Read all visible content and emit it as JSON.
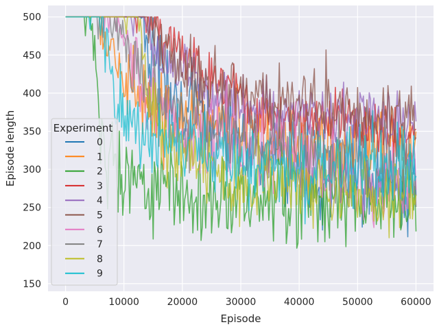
{
  "chart_data": {
    "type": "line",
    "xlabel": "Episode",
    "ylabel": "Episode length",
    "xlim": [
      -3000,
      63000
    ],
    "ylim": [
      140,
      515
    ],
    "x_ticks": [
      0,
      10000,
      20000,
      30000,
      40000,
      50000,
      60000
    ],
    "x_tick_labels": [
      "0",
      "10000",
      "20000",
      "30000",
      "40000",
      "50000",
      "60000"
    ],
    "y_ticks": [
      150,
      200,
      250,
      300,
      350,
      400,
      450,
      500
    ],
    "y_tick_labels": [
      "150",
      "200",
      "250",
      "300",
      "350",
      "400",
      "450",
      "500"
    ],
    "grid": true,
    "style": "seaborn-darkgrid",
    "legend": {
      "title": "Experiment",
      "placement": "center-left"
    },
    "background_color": "#eaeaf2",
    "x_step": 200,
    "series": [
      {
        "name": "0",
        "color": "#1f77b4",
        "plateau_until": 13000,
        "trend": [
          [
            13000,
            490
          ],
          [
            16000,
            430
          ],
          [
            20000,
            380
          ],
          [
            30000,
            340
          ],
          [
            40000,
            300
          ],
          [
            50000,
            290
          ],
          [
            60000,
            285
          ]
        ],
        "noise": 45,
        "min": 175,
        "max": 500
      },
      {
        "name": "1",
        "color": "#ff7f0e",
        "plateau_until": 6000,
        "trend": [
          [
            6000,
            495
          ],
          [
            8000,
            440
          ],
          [
            12000,
            400
          ],
          [
            20000,
            370
          ],
          [
            30000,
            340
          ],
          [
            40000,
            335
          ],
          [
            50000,
            330
          ],
          [
            60000,
            325
          ]
        ],
        "noise": 38,
        "min": 185,
        "max": 500
      },
      {
        "name": "2",
        "color": "#2ca02c",
        "plateau_until": 4500,
        "trend": [
          [
            4500,
            490
          ],
          [
            5500,
            380
          ],
          [
            7000,
            320
          ],
          [
            10000,
            290
          ],
          [
            20000,
            265
          ],
          [
            30000,
            258
          ],
          [
            40000,
            258
          ],
          [
            50000,
            258
          ],
          [
            60000,
            260
          ]
        ],
        "noise": 45,
        "min": 155,
        "max": 500
      },
      {
        "name": "3",
        "color": "#d62728",
        "plateau_until": 14000,
        "trend": [
          [
            14000,
            495
          ],
          [
            18000,
            470
          ],
          [
            25000,
            420
          ],
          [
            30000,
            390
          ],
          [
            40000,
            365
          ],
          [
            50000,
            355
          ],
          [
            60000,
            350
          ]
        ],
        "noise": 32,
        "min": 200,
        "max": 500
      },
      {
        "name": "4",
        "color": "#9467bd",
        "plateau_until": 13500,
        "trend": [
          [
            13500,
            490
          ],
          [
            18000,
            440
          ],
          [
            25000,
            400
          ],
          [
            35000,
            380
          ],
          [
            45000,
            370
          ],
          [
            60000,
            360
          ]
        ],
        "noise": 32,
        "min": 190,
        "max": 500
      },
      {
        "name": "5",
        "color": "#8c564b",
        "plateau_until": 14000,
        "trend": [
          [
            14000,
            495
          ],
          [
            18000,
            450
          ],
          [
            25000,
            410
          ],
          [
            35000,
            390
          ],
          [
            45000,
            380
          ],
          [
            60000,
            370
          ]
        ],
        "noise": 30,
        "min": 200,
        "max": 500
      },
      {
        "name": "6",
        "color": "#e377c2",
        "plateau_until": 9000,
        "trend": [
          [
            9000,
            490
          ],
          [
            12000,
            420
          ],
          [
            20000,
            360
          ],
          [
            30000,
            330
          ],
          [
            40000,
            310
          ],
          [
            50000,
            285
          ],
          [
            60000,
            280
          ]
        ],
        "noise": 42,
        "min": 158,
        "max": 500
      },
      {
        "name": "7",
        "color": "#7f7f7f",
        "plateau_until": 8000,
        "trend": [
          [
            8000,
            490
          ],
          [
            12000,
            420
          ],
          [
            20000,
            370
          ],
          [
            30000,
            340
          ],
          [
            40000,
            320
          ],
          [
            50000,
            300
          ],
          [
            60000,
            295
          ]
        ],
        "noise": 40,
        "min": 182,
        "max": 500
      },
      {
        "name": "8",
        "color": "#bcbd22",
        "plateau_until": 12500,
        "trend": [
          [
            12500,
            490
          ],
          [
            14000,
            400
          ],
          [
            18000,
            330
          ],
          [
            25000,
            300
          ],
          [
            35000,
            285
          ],
          [
            45000,
            270
          ],
          [
            60000,
            265
          ]
        ],
        "noise": 42,
        "min": 182,
        "max": 500
      },
      {
        "name": "9",
        "color": "#17becf",
        "plateau_until": 6500,
        "trend": [
          [
            6500,
            490
          ],
          [
            8000,
            400
          ],
          [
            12000,
            350
          ],
          [
            20000,
            330
          ],
          [
            30000,
            310
          ],
          [
            40000,
            300
          ],
          [
            50000,
            295
          ],
          [
            60000,
            295
          ]
        ],
        "noise": 40,
        "min": 190,
        "max": 500
      }
    ]
  }
}
